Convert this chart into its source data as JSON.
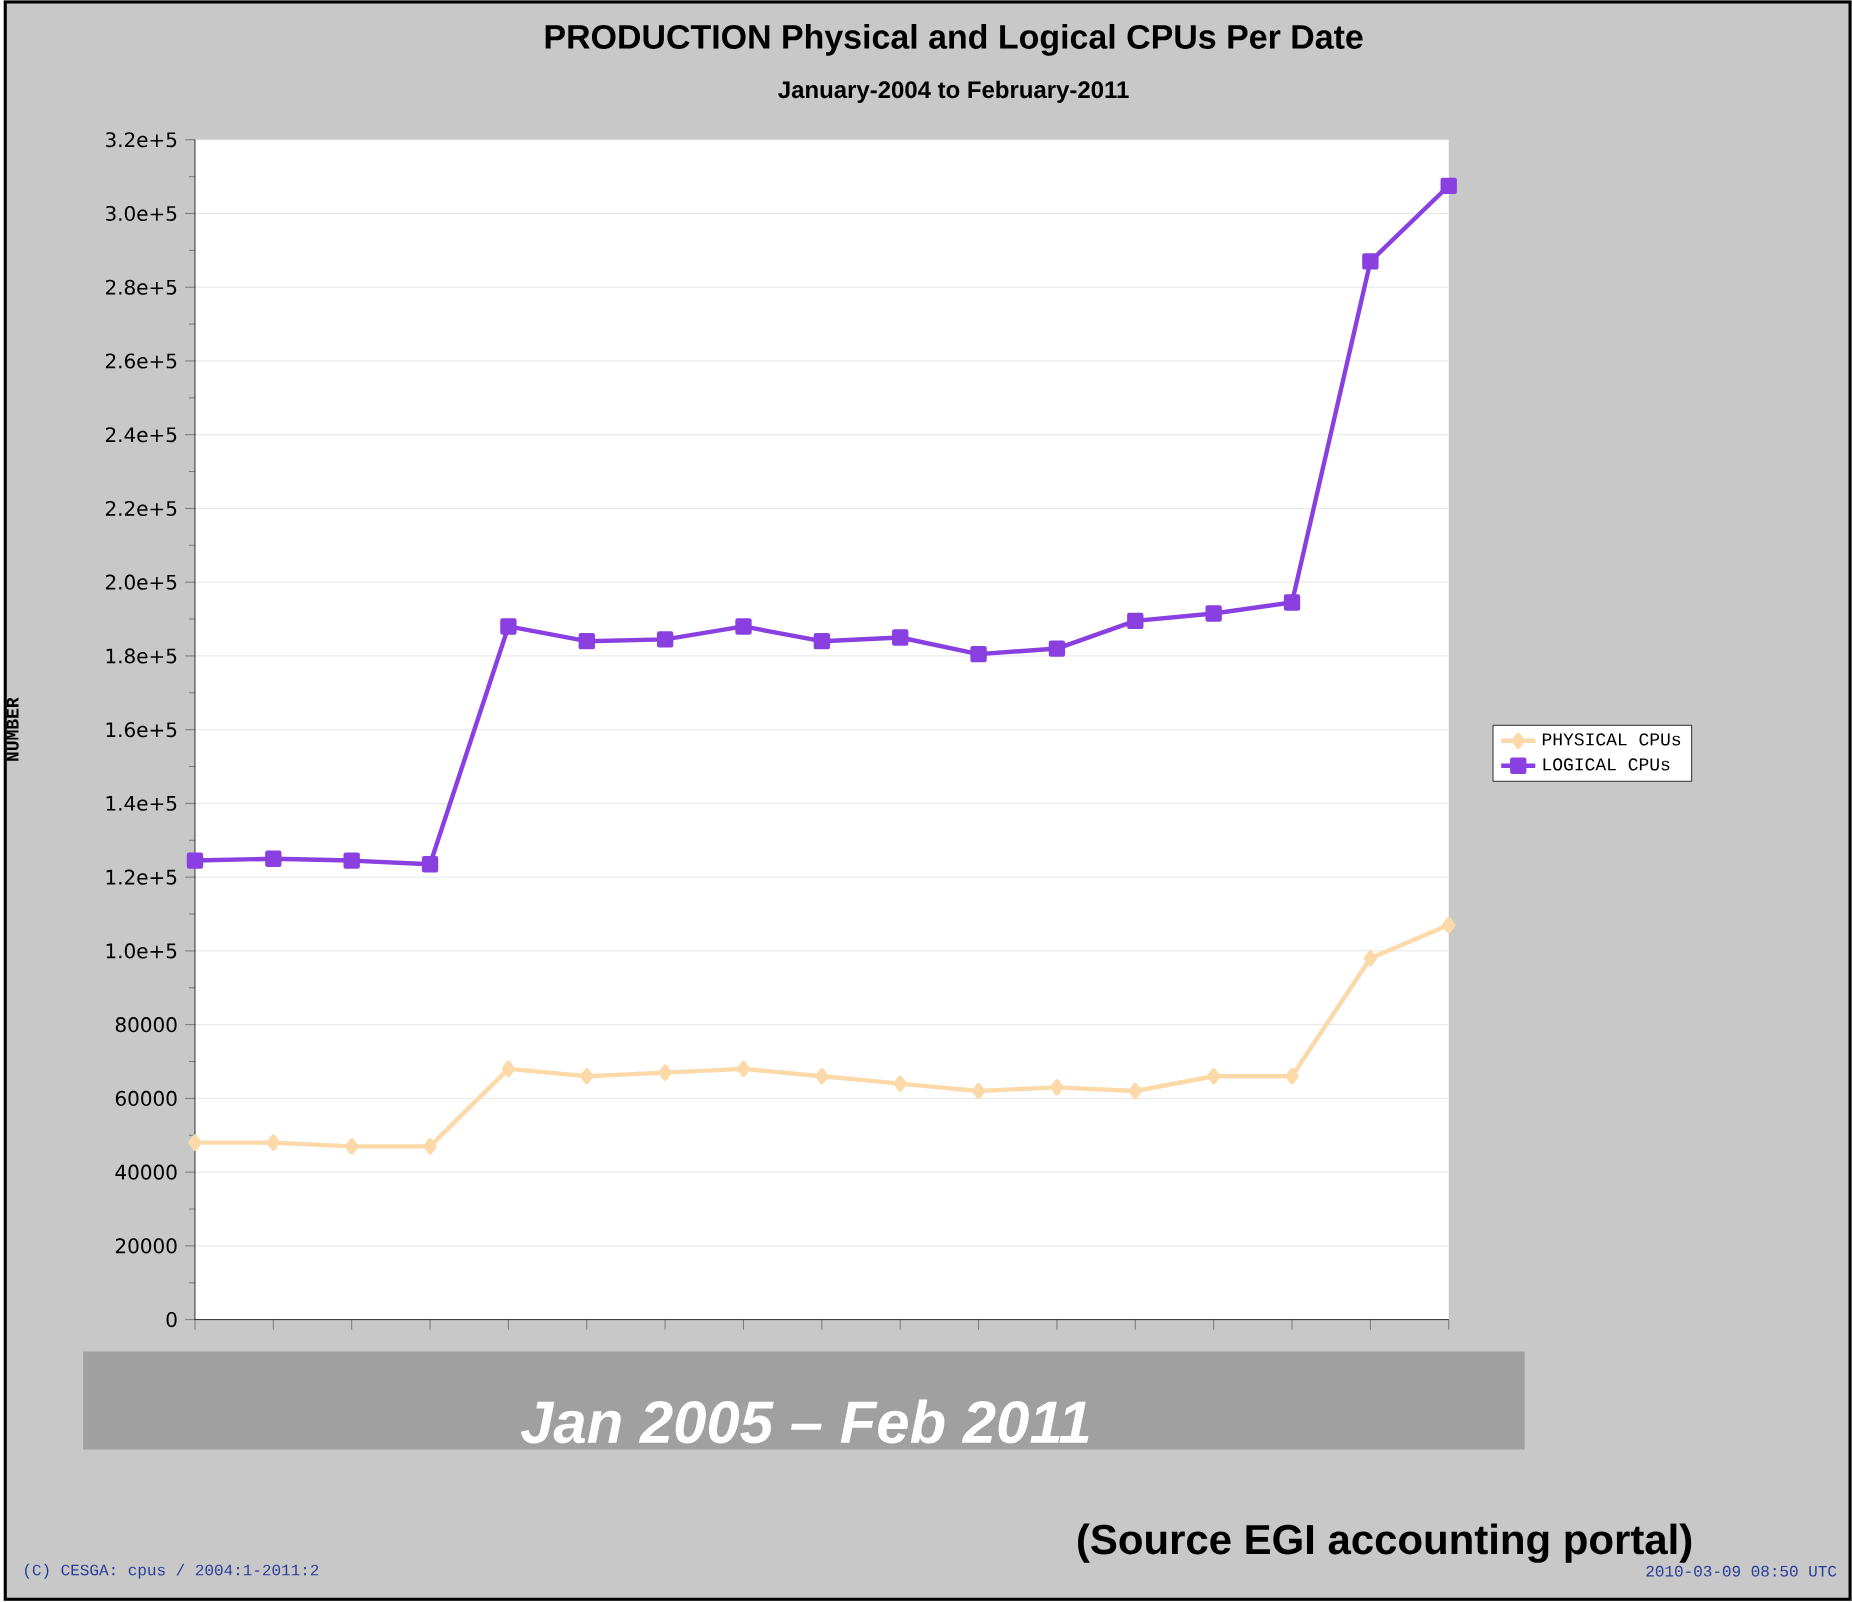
{
  "chart_data": {
    "type": "line",
    "title": "PRODUCTION Physical and Logical CPUs Per Date",
    "subtitle": "January-2004 to February-2011",
    "ylabel": "NUMBER",
    "categories": [
      null,
      null,
      null,
      null,
      null,
      null,
      null,
      null,
      null,
      null,
      null,
      null,
      null,
      null,
      null,
      null,
      null
    ],
    "series": [
      {
        "name": "PHYSICAL CPUs",
        "color": "#fcd9a8",
        "marker": "diamond",
        "values": [
          48000,
          48000,
          47000,
          47000,
          68000,
          66000,
          67000,
          68000,
          66000,
          64000,
          62000,
          63000,
          62000,
          66000,
          66000,
          98000,
          107000
        ]
      },
      {
        "name": "LOGICAL CPUs",
        "color": "#8a3fe0",
        "marker": "square",
        "values": [
          124500,
          125000,
          124500,
          123500,
          188000,
          184000,
          184500,
          188000,
          184000,
          185000,
          180500,
          182000,
          189500,
          191500,
          194500,
          287000,
          307500
        ]
      }
    ],
    "ylim": [
      0,
      320000
    ],
    "yticks": [
      0,
      20000,
      40000,
      60000,
      80000,
      {
        "value": 100000,
        "label": "1.0e+5"
      },
      {
        "value": 120000,
        "label": "1.2e+5"
      },
      {
        "value": 140000,
        "label": "1.4e+5"
      },
      {
        "value": 160000,
        "label": "1.6e+5"
      },
      {
        "value": 180000,
        "label": "1.8e+5"
      },
      {
        "value": 200000,
        "label": "2.0e+5"
      },
      {
        "value": 220000,
        "label": "2.2e+5"
      },
      {
        "value": 240000,
        "label": "2.4e+5"
      },
      {
        "value": 260000,
        "label": "2.6e+5"
      },
      {
        "value": 280000,
        "label": "2.8e+5"
      },
      {
        "value": 300000,
        "label": "3.0e+5"
      },
      {
        "value": 320000,
        "label": "3.2e+5"
      }
    ],
    "grid": "y",
    "legend": "right",
    "line_style": "solid",
    "annotations": [
      "Jan 2005 – Feb 2011",
      "(Source EGI accounting portal)",
      "(C) CESGA: cpus / 2004:1-2011:2",
      "2010-03-09 08:50 UTC"
    ]
  }
}
